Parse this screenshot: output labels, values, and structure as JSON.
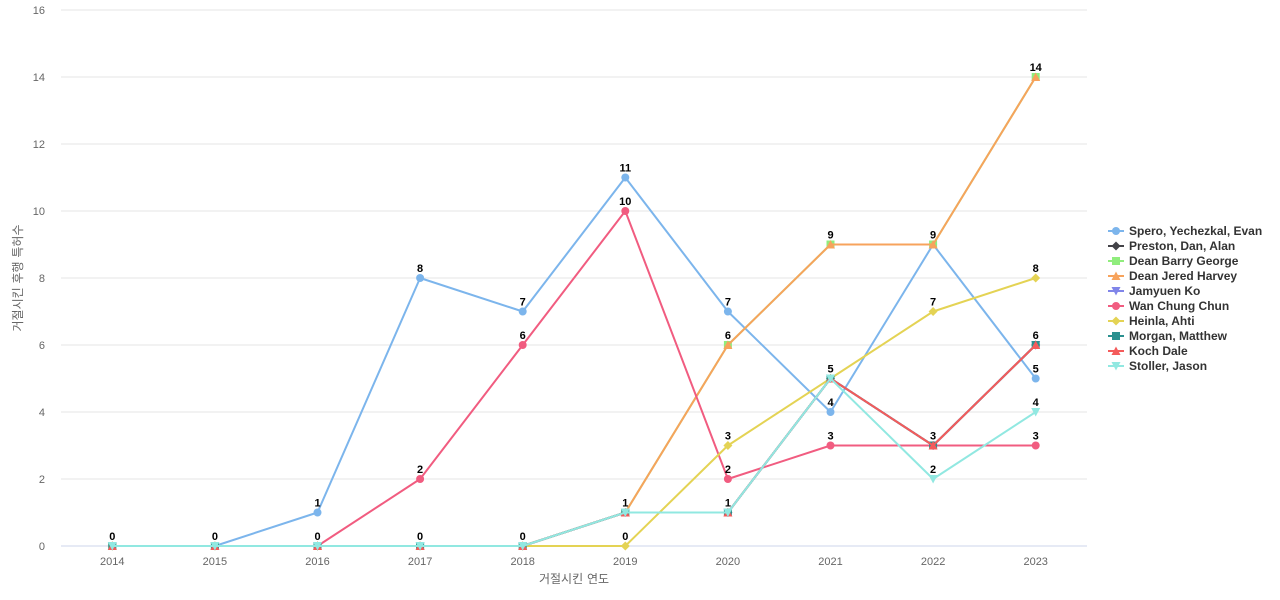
{
  "chart_data": {
    "type": "line",
    "title": "",
    "xlabel": "거절시킨 연도",
    "ylabel": "거절시킨 후행 특허수",
    "categories": [
      "2014",
      "2015",
      "2016",
      "2017",
      "2018",
      "2019",
      "2020",
      "2021",
      "2022",
      "2023"
    ],
    "ylim": [
      0,
      16
    ],
    "yticks": [
      0,
      2,
      4,
      6,
      8,
      10,
      12,
      14,
      16
    ],
    "grid": true,
    "legend_position": "right",
    "series": [
      {
        "name": "Spero, Yechezkal, Evan",
        "color": "#7cb5ec",
        "marker": "circle",
        "values": [
          0,
          0,
          1,
          8,
          7,
          11,
          7,
          4,
          9,
          5
        ]
      },
      {
        "name": "Preston, Dan, Alan",
        "color": "#434348",
        "marker": "diamond",
        "values": [
          0,
          0,
          0,
          0,
          0,
          1,
          1,
          5,
          3,
          6
        ]
      },
      {
        "name": "Dean Barry George",
        "color": "#90ed7d",
        "marker": "square",
        "values": [
          0,
          0,
          0,
          0,
          0,
          1,
          6,
          9,
          9,
          14
        ]
      },
      {
        "name": "Dean Jered Harvey",
        "color": "#f7a35c",
        "marker": "triangle",
        "values": [
          0,
          0,
          0,
          0,
          0,
          1,
          6,
          9,
          9,
          14
        ]
      },
      {
        "name": "Jamyuen Ko",
        "color": "#8085e9",
        "marker": "triangle-down",
        "values": [
          0,
          0,
          0,
          0,
          0,
          1,
          1,
          5,
          3,
          6
        ]
      },
      {
        "name": "Wan Chung Chun",
        "color": "#f15c80",
        "marker": "circle",
        "values": [
          0,
          0,
          0,
          2,
          6,
          10,
          2,
          3,
          3,
          3
        ]
      },
      {
        "name": "Heinla, Ahti",
        "color": "#e4d354",
        "marker": "diamond",
        "values": [
          0,
          0,
          0,
          0,
          0,
          0,
          3,
          5,
          7,
          8
        ]
      },
      {
        "name": "Morgan, Matthew",
        "color": "#2b908f",
        "marker": "square",
        "values": [
          0,
          0,
          0,
          0,
          0,
          1,
          1,
          5,
          3,
          6
        ]
      },
      {
        "name": "Koch Dale",
        "color": "#f45b5b",
        "marker": "triangle",
        "values": [
          0,
          0,
          0,
          0,
          0,
          1,
          1,
          5,
          3,
          6
        ]
      },
      {
        "name": "Stoller, Jason",
        "color": "#91e8e1",
        "marker": "triangle-down",
        "values": [
          0,
          0,
          0,
          0,
          0,
          1,
          1,
          5,
          2,
          4
        ]
      }
    ],
    "data_labels": [
      {
        "x": "2014",
        "value": 0
      },
      {
        "x": "2015",
        "value": 0
      },
      {
        "x": "2016",
        "value": 1
      },
      {
        "x": "2016",
        "value": 0
      },
      {
        "x": "2017",
        "value": 8
      },
      {
        "x": "2017",
        "value": 2
      },
      {
        "x": "2017",
        "value": 0
      },
      {
        "x": "2018",
        "value": 7
      },
      {
        "x": "2018",
        "value": 6
      },
      {
        "x": "2018",
        "value": 0
      },
      {
        "x": "2019",
        "value": 11
      },
      {
        "x": "2019",
        "value": 10
      },
      {
        "x": "2019",
        "value": 1
      },
      {
        "x": "2019",
        "value": 0
      },
      {
        "x": "2020",
        "value": 7
      },
      {
        "x": "2020",
        "value": 6
      },
      {
        "x": "2020",
        "value": 3
      },
      {
        "x": "2020",
        "value": 2
      },
      {
        "x": "2020",
        "value": 1
      },
      {
        "x": "2021",
        "value": 9
      },
      {
        "x": "2021",
        "value": 5
      },
      {
        "x": "2021",
        "value": 4
      },
      {
        "x": "2021",
        "value": 3
      },
      {
        "x": "2022",
        "value": 9
      },
      {
        "x": "2022",
        "value": 7
      },
      {
        "x": "2022",
        "value": 3
      },
      {
        "x": "2022",
        "value": 2
      },
      {
        "x": "2023",
        "value": 14
      },
      {
        "x": "2023",
        "value": 8
      },
      {
        "x": "2023",
        "value": 6
      },
      {
        "x": "2023",
        "value": 5
      },
      {
        "x": "2023",
        "value": 4
      },
      {
        "x": "2023",
        "value": 3
      }
    ]
  }
}
